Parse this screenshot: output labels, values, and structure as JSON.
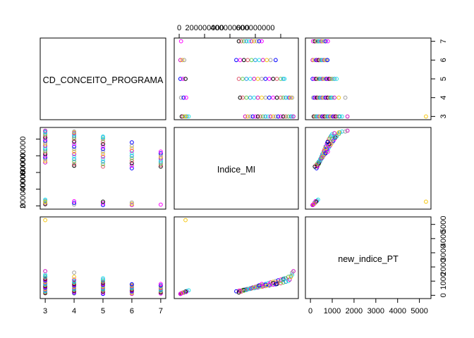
{
  "chart_data": {
    "type": "scatter",
    "subtype": "pairs-matrix",
    "variables": [
      "CD_CONCEITO_PROGRAMA",
      "Indice_MI",
      "new_indice_PT"
    ],
    "axes": {
      "CD_CONCEITO_PROGRAMA": {
        "range": [
          3,
          7
        ],
        "ticks": [
          3,
          4,
          5,
          6,
          7
        ],
        "tick_labels": [
          "3",
          "4",
          "5",
          "6",
          "7"
        ],
        "axis_side": "bottom-left col / right row1"
      },
      "Indice_MI": {
        "range": [
          0,
          900000000
        ],
        "ticks": [
          0,
          200000000,
          400000000,
          600000000,
          800000000
        ],
        "tick_labels": [
          "0",
          "200000000",
          "400000000",
          "600000000",
          ""
        ],
        "axis_side": "top col2 / left row2"
      },
      "new_indice_PT": {
        "range": [
          0,
          5300
        ],
        "ticks": [
          0,
          1000,
          2000,
          3000,
          4000,
          5000
        ],
        "tick_labels": [
          "0",
          "1000",
          "2000",
          "3000",
          "4000",
          "5000"
        ],
        "axis_side": "bottom col3 / right row3"
      }
    },
    "point_colors": [
      "#000000",
      "#DF536B",
      "#61D04F",
      "#2297E6",
      "#28E2E5",
      "#CD0BBC",
      "#F5C710",
      "#9E9E9E",
      "#0000FF",
      "#FF00FF"
    ],
    "series": [
      {
        "conceito": 3,
        "points": [
          [
            3,
            20000000,
            150
          ],
          [
            3,
            30000000,
            200
          ],
          [
            3,
            45000000,
            250
          ],
          [
            3,
            60000000,
            300
          ],
          [
            3,
            75000000,
            350
          ],
          [
            3,
            520000000,
            400
          ],
          [
            3,
            540000000,
            450
          ],
          [
            3,
            560000000,
            500
          ],
          [
            3,
            580000000,
            550
          ],
          [
            3,
            600000000,
            600
          ],
          [
            3,
            620000000,
            650
          ],
          [
            3,
            640000000,
            700
          ],
          [
            3,
            660000000,
            750
          ],
          [
            3,
            680000000,
            800
          ],
          [
            3,
            700000000,
            850
          ],
          [
            3,
            720000000,
            900
          ],
          [
            3,
            740000000,
            950
          ],
          [
            3,
            760000000,
            1000
          ],
          [
            3,
            780000000,
            1050
          ],
          [
            3,
            800000000,
            1100
          ],
          [
            3,
            820000000,
            1150
          ],
          [
            3,
            840000000,
            1200
          ],
          [
            3,
            860000000,
            1300
          ],
          [
            3,
            880000000,
            1350
          ],
          [
            3,
            890000000,
            1450
          ],
          [
            3,
            900000000,
            1700
          ],
          [
            3,
            50000000,
            5300
          ]
        ]
      },
      {
        "conceito": 4,
        "points": [
          [
            4,
            15000000,
            120
          ],
          [
            4,
            35000000,
            180
          ],
          [
            4,
            55000000,
            230
          ],
          [
            4,
            480000000,
            300
          ],
          [
            4,
            500000000,
            350
          ],
          [
            4,
            530000000,
            400
          ],
          [
            4,
            560000000,
            450
          ],
          [
            4,
            590000000,
            500
          ],
          [
            4,
            620000000,
            550
          ],
          [
            4,
            650000000,
            600
          ],
          [
            4,
            680000000,
            650
          ],
          [
            4,
            710000000,
            700
          ],
          [
            4,
            740000000,
            750
          ],
          [
            4,
            770000000,
            800
          ],
          [
            4,
            800000000,
            850
          ],
          [
            4,
            820000000,
            900
          ],
          [
            4,
            840000000,
            950
          ],
          [
            4,
            860000000,
            1000
          ],
          [
            4,
            870000000,
            1100
          ],
          [
            4,
            880000000,
            1300
          ],
          [
            4,
            890000000,
            1600
          ]
        ]
      },
      {
        "conceito": 5,
        "points": [
          [
            5,
            10000000,
            100
          ],
          [
            5,
            30000000,
            180
          ],
          [
            5,
            50000000,
            260
          ],
          [
            5,
            470000000,
            320
          ],
          [
            5,
            500000000,
            380
          ],
          [
            5,
            530000000,
            440
          ],
          [
            5,
            560000000,
            500
          ],
          [
            5,
            590000000,
            560
          ],
          [
            5,
            620000000,
            620
          ],
          [
            5,
            650000000,
            680
          ],
          [
            5,
            680000000,
            740
          ],
          [
            5,
            710000000,
            800
          ],
          [
            5,
            740000000,
            860
          ],
          [
            5,
            770000000,
            920
          ],
          [
            5,
            800000000,
            1000
          ],
          [
            5,
            820000000,
            1100
          ],
          [
            5,
            830000000,
            1200
          ]
        ]
      },
      {
        "conceito": 6,
        "points": [
          [
            6,
            10000000,
            100
          ],
          [
            6,
            25000000,
            160
          ],
          [
            6,
            40000000,
            220
          ],
          [
            6,
            450000000,
            280
          ],
          [
            6,
            480000000,
            330
          ],
          [
            6,
            510000000,
            380
          ],
          [
            6,
            540000000,
            430
          ],
          [
            6,
            570000000,
            480
          ],
          [
            6,
            600000000,
            530
          ],
          [
            6,
            630000000,
            580
          ],
          [
            6,
            660000000,
            630
          ],
          [
            6,
            690000000,
            680
          ],
          [
            6,
            720000000,
            730
          ],
          [
            6,
            760000000,
            780
          ]
        ]
      },
      {
        "conceito": 7,
        "points": [
          [
            7,
            15000000,
            120
          ],
          [
            7,
            470000000,
            200
          ],
          [
            7,
            490000000,
            260
          ],
          [
            7,
            510000000,
            320
          ],
          [
            7,
            530000000,
            380
          ],
          [
            7,
            550000000,
            440
          ],
          [
            7,
            570000000,
            500
          ],
          [
            7,
            590000000,
            560
          ],
          [
            7,
            610000000,
            620
          ],
          [
            7,
            630000000,
            700
          ],
          [
            7,
            650000000,
            800
          ]
        ]
      }
    ],
    "diag_labels": [
      "CD_CONCEITO_PROGRAMA",
      "Indice_MI",
      "new_indice_PT"
    ],
    "grid": false,
    "legend": "none"
  }
}
